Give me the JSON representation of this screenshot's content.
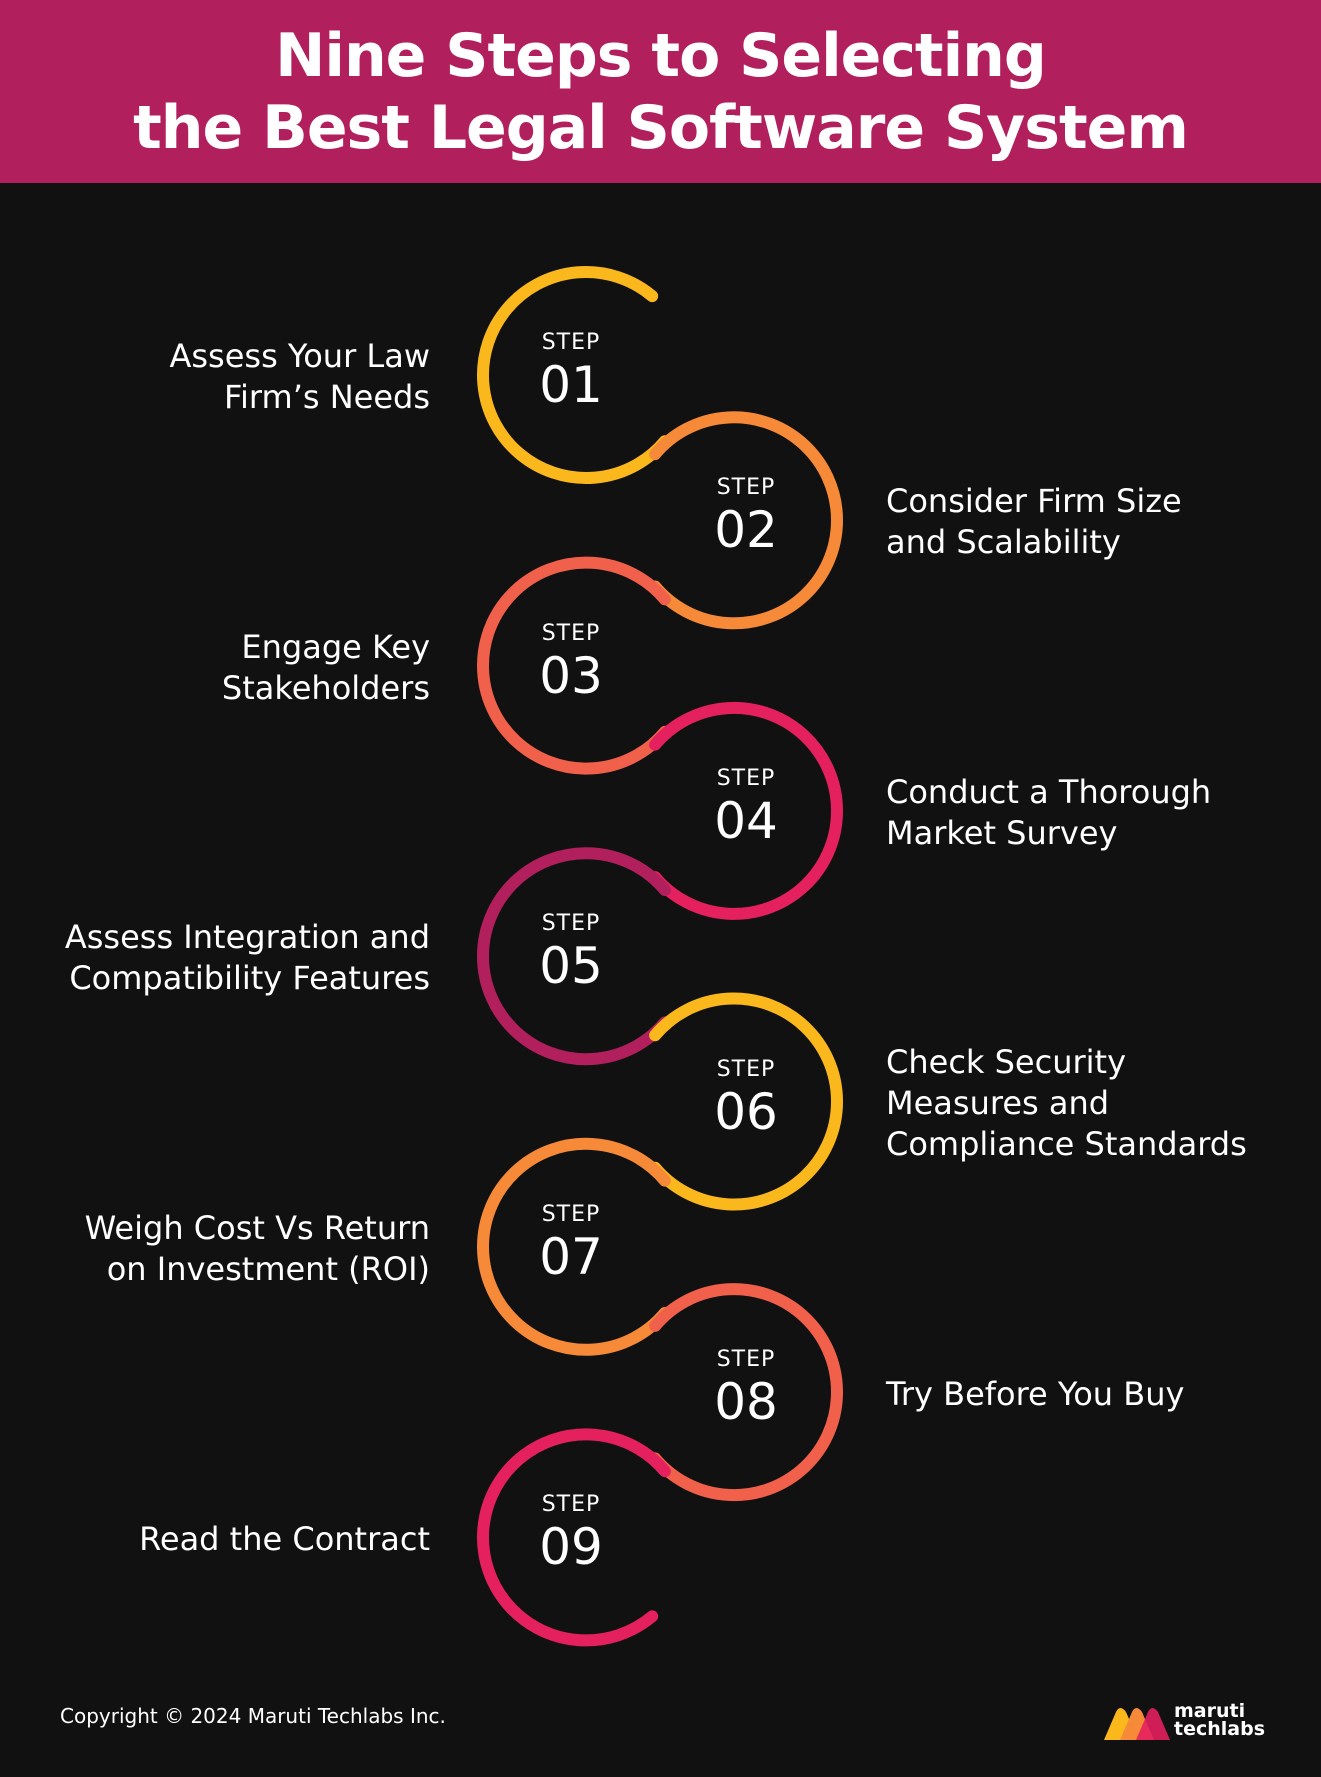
{
  "header": {
    "title_line1": "Nine Steps to Selecting",
    "title_line2": "the Best Legal Software System",
    "background": "#b21f5d"
  },
  "steps": [
    {
      "label": "STEP",
      "number": "01",
      "desc": [
        "Assess Your Law",
        "Firm’s Needs"
      ],
      "color": "#fbb81c"
    },
    {
      "label": "STEP",
      "number": "02",
      "desc": [
        "Consider Firm Size",
        "and Scalability"
      ],
      "color": "#f68a38"
    },
    {
      "label": "STEP",
      "number": "03",
      "desc": [
        "Engage Key",
        "Stakeholders"
      ],
      "color": "#f0604a"
    },
    {
      "label": "STEP",
      "number": "04",
      "desc": [
        "Conduct a Thorough",
        "Market Survey"
      ],
      "color": "#e4205f"
    },
    {
      "label": "STEP",
      "number": "05",
      "desc": [
        "Assess Integration and",
        "Compatibility Features"
      ],
      "color": "#b21f5d"
    },
    {
      "label": "STEP",
      "number": "06",
      "desc": [
        "Check Security",
        "Measures and",
        "Compliance Standards"
      ],
      "color": "#fbb81c"
    },
    {
      "label": "STEP",
      "number": "07",
      "desc": [
        "Weigh Cost Vs Return",
        "on Investment (ROI)"
      ],
      "color": "#f68a38"
    },
    {
      "label": "STEP",
      "number": "08",
      "desc": [
        "Try Before You Buy"
      ],
      "color": "#f0604a"
    },
    {
      "label": "STEP",
      "number": "09",
      "desc": [
        "Read the Contract"
      ],
      "color": "#e4205f"
    }
  ],
  "footer": {
    "copyright": "Copyright © 2024 Maruti Techlabs Inc.",
    "logo_line1": "maruti",
    "logo_line2": "techlabs"
  }
}
